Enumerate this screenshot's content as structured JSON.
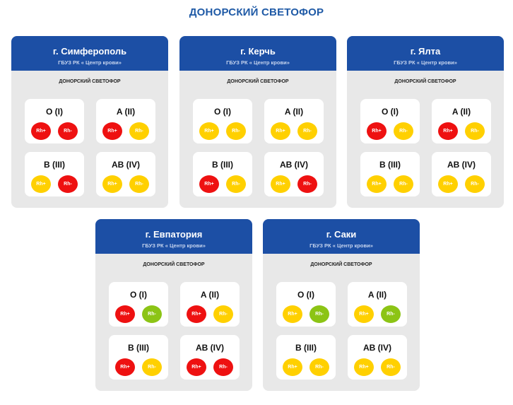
{
  "page": {
    "title": "ДОНОРСКИЙ СВЕТОФОР"
  },
  "colors": {
    "red": "#ee1111",
    "yellow": "#ffd000",
    "green": "#8cc415",
    "header": "#1c4fa5"
  },
  "cards": [
    {
      "city": "г. Симферополь",
      "org": "ГБУЗ РК « Центр крови»",
      "subtitle": "ДОНОРСКИЙ СВЕТОФОР",
      "groups": [
        {
          "name": "O (I)",
          "rh": [
            {
              "label": "Rh+",
              "status": "red"
            },
            {
              "label": "Rh-",
              "status": "red"
            }
          ]
        },
        {
          "name": "A (II)",
          "rh": [
            {
              "label": "Rh+",
              "status": "red"
            },
            {
              "label": "Rh-",
              "status": "yellow"
            }
          ]
        },
        {
          "name": "B (III)",
          "rh": [
            {
              "label": "Rh+",
              "status": "yellow"
            },
            {
              "label": "Rh-",
              "status": "red"
            }
          ]
        },
        {
          "name": "AB (IV)",
          "rh": [
            {
              "label": "Rh+",
              "status": "yellow"
            },
            {
              "label": "Rh-",
              "status": "yellow"
            }
          ]
        }
      ]
    },
    {
      "city": "г. Керчь",
      "org": "ГБУЗ РК « Центр крови»",
      "subtitle": "ДОНОРСКИЙ СВЕТОФОР",
      "groups": [
        {
          "name": "O (I)",
          "rh": [
            {
              "label": "Rh+",
              "status": "yellow"
            },
            {
              "label": "Rh-",
              "status": "yellow"
            }
          ]
        },
        {
          "name": "A (II)",
          "rh": [
            {
              "label": "Rh+",
              "status": "yellow"
            },
            {
              "label": "Rh-",
              "status": "yellow"
            }
          ]
        },
        {
          "name": "B (III)",
          "rh": [
            {
              "label": "Rh+",
              "status": "red"
            },
            {
              "label": "Rh-",
              "status": "yellow"
            }
          ]
        },
        {
          "name": "AB (IV)",
          "rh": [
            {
              "label": "Rh+",
              "status": "yellow"
            },
            {
              "label": "Rh-",
              "status": "red"
            }
          ]
        }
      ]
    },
    {
      "city": "г. Ялта",
      "org": "ГБУЗ РК « Центр крови»",
      "subtitle": "ДОНОРСКИЙ СВЕТОФОР",
      "groups": [
        {
          "name": "O (I)",
          "rh": [
            {
              "label": "Rh+",
              "status": "red"
            },
            {
              "label": "Rh-",
              "status": "yellow"
            }
          ]
        },
        {
          "name": "A (II)",
          "rh": [
            {
              "label": "Rh+",
              "status": "red"
            },
            {
              "label": "Rh-",
              "status": "yellow"
            }
          ]
        },
        {
          "name": "B (III)",
          "rh": [
            {
              "label": "Rh+",
              "status": "yellow"
            },
            {
              "label": "Rh-",
              "status": "yellow"
            }
          ]
        },
        {
          "name": "AB (IV)",
          "rh": [
            {
              "label": "Rh+",
              "status": "yellow"
            },
            {
              "label": "Rh-",
              "status": "yellow"
            }
          ]
        }
      ]
    },
    {
      "city": "г. Евпатория",
      "org": "ГБУЗ РК « Центр крови»",
      "subtitle": "ДОНОРСКИЙ СВЕТОФОР",
      "groups": [
        {
          "name": "O (I)",
          "rh": [
            {
              "label": "Rh+",
              "status": "red"
            },
            {
              "label": "Rh-",
              "status": "green"
            }
          ]
        },
        {
          "name": "A (II)",
          "rh": [
            {
              "label": "Rh+",
              "status": "red"
            },
            {
              "label": "Rh-",
              "status": "yellow"
            }
          ]
        },
        {
          "name": "B (III)",
          "rh": [
            {
              "label": "Rh+",
              "status": "red"
            },
            {
              "label": "Rh-",
              "status": "yellow"
            }
          ]
        },
        {
          "name": "AB (IV)",
          "rh": [
            {
              "label": "Rh+",
              "status": "red"
            },
            {
              "label": "Rh-",
              "status": "red"
            }
          ]
        }
      ]
    },
    {
      "city": "г. Саки",
      "org": "ГБУЗ РК « Центр крови»",
      "subtitle": "ДОНОРСКИЙ СВЕТОФОР",
      "groups": [
        {
          "name": "O (I)",
          "rh": [
            {
              "label": "Rh+",
              "status": "yellow"
            },
            {
              "label": "Rh-",
              "status": "green"
            }
          ]
        },
        {
          "name": "A (II)",
          "rh": [
            {
              "label": "Rh+",
              "status": "yellow"
            },
            {
              "label": "Rh-",
              "status": "green"
            }
          ]
        },
        {
          "name": "B (III)",
          "rh": [
            {
              "label": "Rh+",
              "status": "yellow"
            },
            {
              "label": "Rh-",
              "status": "yellow"
            }
          ]
        },
        {
          "name": "AB (IV)",
          "rh": [
            {
              "label": "Rh+",
              "status": "yellow"
            },
            {
              "label": "Rh-",
              "status": "yellow"
            }
          ]
        }
      ]
    }
  ]
}
